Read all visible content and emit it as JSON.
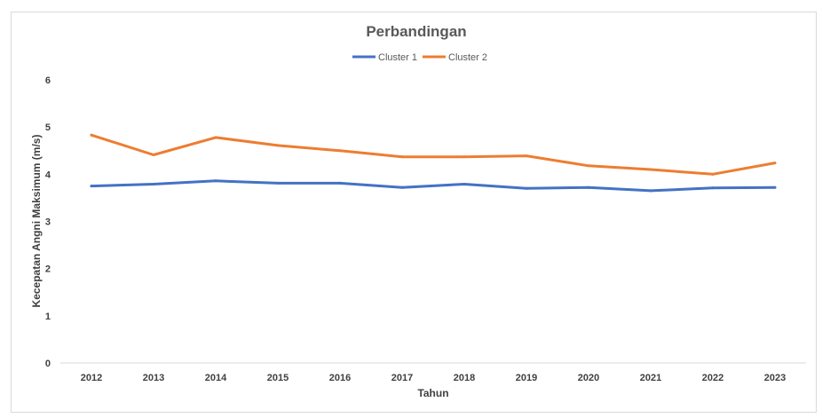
{
  "chart_data": {
    "type": "line",
    "title": "Perbandingan",
    "xlabel": "Tahun",
    "ylabel": "Kecepatan Angni Maksimum (m/s)",
    "categories": [
      "2012",
      "2013",
      "2014",
      "2015",
      "2016",
      "2017",
      "2018",
      "2019",
      "2020",
      "2021",
      "2022",
      "2023"
    ],
    "ylim": [
      0,
      6
    ],
    "yticks": [
      "0",
      "1",
      "2",
      "3",
      "4",
      "5",
      "6"
    ],
    "grid": false,
    "legend_position": "top",
    "series": [
      {
        "name": "Cluster 1",
        "color": "#4472c4",
        "values": [
          3.75,
          3.79,
          3.86,
          3.81,
          3.81,
          3.72,
          3.79,
          3.7,
          3.72,
          3.65,
          3.71,
          3.72
        ]
      },
      {
        "name": "Cluster 2",
        "color": "#ed7d31",
        "values": [
          4.83,
          4.41,
          4.78,
          4.61,
          4.5,
          4.37,
          4.37,
          4.39,
          4.18,
          4.1,
          4.0,
          4.24
        ]
      }
    ]
  }
}
